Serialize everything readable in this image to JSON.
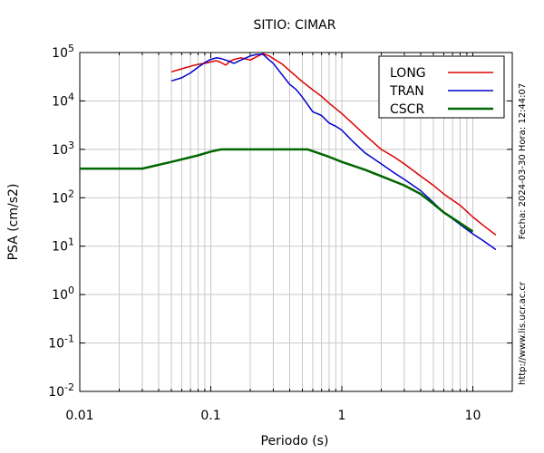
{
  "chart_data": {
    "type": "line",
    "title": "SITIO: CIMAR",
    "xlabel": "Periodo (s)",
    "ylabel": "PSA (cm/s2)",
    "xscale": "log",
    "yscale": "log",
    "xlim": [
      0.01,
      20
    ],
    "ylim": [
      0.01,
      100000
    ],
    "grid": true,
    "legend_position": "top-right",
    "x_ticks": [
      {
        "value": 0.01,
        "label": "0.01"
      },
      {
        "value": 0.1,
        "label": "0.1"
      },
      {
        "value": 1,
        "label": "1"
      },
      {
        "value": 10,
        "label": "10"
      }
    ],
    "y_ticks": [
      {
        "value": 0.01,
        "base": "10",
        "exp": "-2"
      },
      {
        "value": 0.1,
        "base": "10",
        "exp": "-1"
      },
      {
        "value": 1,
        "base": "10",
        "exp": "0"
      },
      {
        "value": 10,
        "base": "10",
        "exp": "1"
      },
      {
        "value": 100,
        "base": "10",
        "exp": "2"
      },
      {
        "value": 1000,
        "base": "10",
        "exp": "3"
      },
      {
        "value": 10000,
        "base": "10",
        "exp": "4"
      },
      {
        "value": 100000,
        "base": "10",
        "exp": "5"
      }
    ],
    "series": [
      {
        "name": "LONG",
        "color": "#dd0000",
        "x": [
          0.05,
          0.06,
          0.07,
          0.08,
          0.09,
          0.1,
          0.11,
          0.12,
          0.13,
          0.14,
          0.15,
          0.17,
          0.2,
          0.22,
          0.25,
          0.28,
          0.3,
          0.35,
          0.4,
          0.5,
          0.6,
          0.7,
          0.8,
          1.0,
          1.2,
          1.5,
          2.0,
          2.5,
          3.0,
          4.0,
          5.0,
          6.0,
          8.0,
          10.0,
          12.0,
          15.0
        ],
        "values": [
          40000,
          46000,
          52000,
          57000,
          60000,
          64000,
          68000,
          62000,
          55000,
          66000,
          72000,
          78000,
          70000,
          80000,
          95000,
          85000,
          75000,
          58000,
          42000,
          25000,
          17000,
          12500,
          9000,
          5500,
          3500,
          2000,
          1000,
          700,
          500,
          280,
          180,
          120,
          70,
          40,
          27,
          17
        ]
      },
      {
        "name": "TRAN",
        "color": "#0000cc",
        "x": [
          0.05,
          0.06,
          0.07,
          0.08,
          0.09,
          0.1,
          0.11,
          0.12,
          0.13,
          0.14,
          0.15,
          0.17,
          0.2,
          0.22,
          0.25,
          0.28,
          0.3,
          0.35,
          0.4,
          0.45,
          0.5,
          0.6,
          0.7,
          0.8,
          0.9,
          1.0,
          1.2,
          1.5,
          2.0,
          2.5,
          3.0,
          4.0,
          5.0,
          6.0,
          8.0,
          10.0,
          12.0,
          15.0
        ],
        "values": [
          26000,
          30000,
          38000,
          50000,
          62000,
          72000,
          78000,
          75000,
          70000,
          65000,
          60000,
          70000,
          85000,
          90000,
          92000,
          70000,
          60000,
          35000,
          22000,
          17000,
          12000,
          6000,
          5000,
          3500,
          3000,
          2500,
          1500,
          850,
          500,
          330,
          240,
          140,
          80,
          50,
          28,
          18,
          13,
          8.5
        ]
      },
      {
        "name": "CSCR",
        "color": "#006600",
        "x": [
          0.01,
          0.03,
          0.05,
          0.08,
          0.1,
          0.12,
          0.2,
          0.3,
          0.4,
          0.55,
          0.8,
          1.0,
          1.5,
          2.0,
          3.0,
          4.0,
          5.0,
          6.0,
          8.0,
          10.0
        ],
        "values": [
          400,
          400,
          550,
          750,
          900,
          1000,
          1000,
          1000,
          1000,
          1000,
          700,
          550,
          380,
          280,
          180,
          120,
          75,
          50,
          30,
          20
        ]
      }
    ]
  },
  "side_texts": {
    "timestamp": "Fecha: 2024-03-30  Hora: 12:44:07",
    "website": "http://www.lis.ucr.ac.cr"
  }
}
